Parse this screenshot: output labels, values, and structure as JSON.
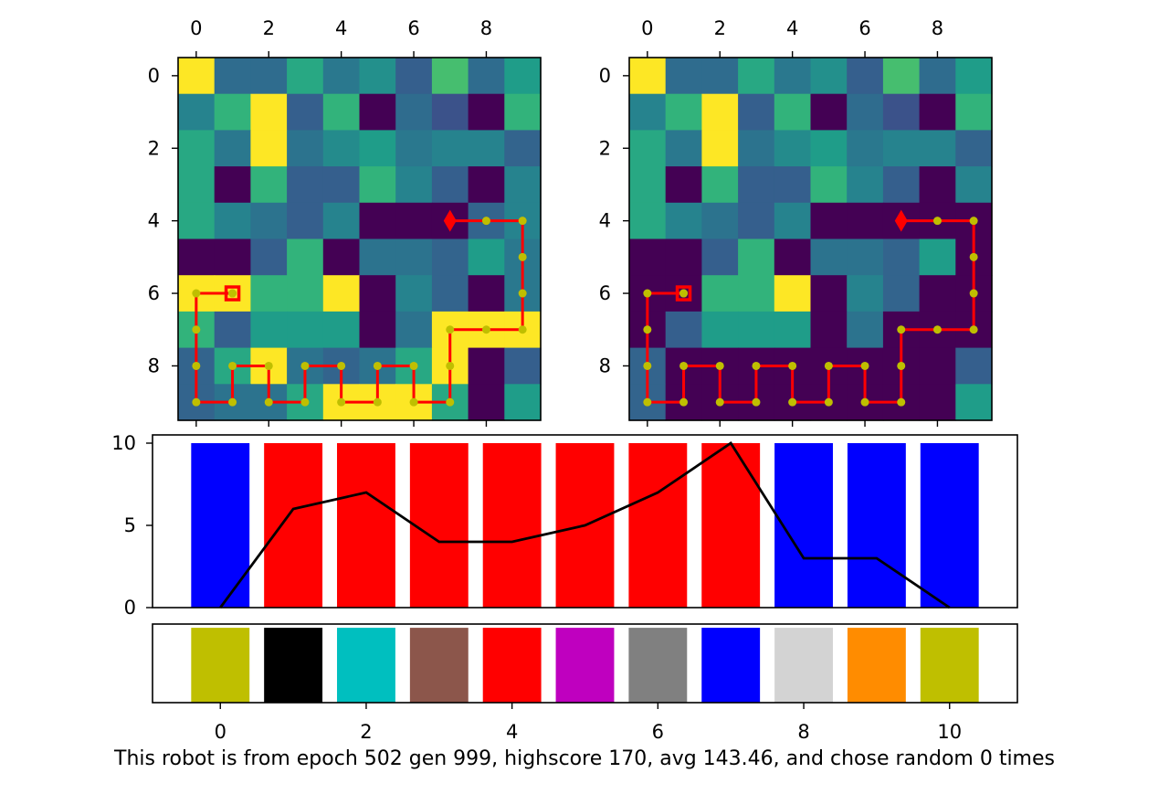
{
  "chart_data": [
    {
      "type": "heatmap",
      "panel": "grid-left",
      "colormap": "viridis",
      "xticks": [
        0,
        2,
        4,
        6,
        8
      ],
      "yticks": [
        0,
        2,
        4,
        6,
        8
      ],
      "grid_values": [
        [
          1.0,
          0.35,
          0.35,
          0.6,
          0.4,
          0.5,
          0.3,
          0.7,
          0.35,
          0.55
        ],
        [
          0.45,
          0.65,
          1.0,
          0.3,
          0.65,
          0.0,
          0.35,
          0.25,
          0.0,
          0.65
        ],
        [
          0.6,
          0.4,
          1.0,
          0.38,
          0.48,
          0.55,
          0.4,
          0.45,
          0.45,
          0.32
        ],
        [
          0.6,
          0.0,
          0.65,
          0.3,
          0.3,
          0.65,
          0.45,
          0.3,
          0.0,
          0.45
        ],
        [
          0.6,
          0.45,
          0.38,
          0.3,
          0.45,
          0.0,
          0.0,
          0.0,
          0.32,
          0.45
        ],
        [
          0.0,
          0.0,
          0.3,
          0.65,
          0.0,
          0.38,
          0.38,
          0.32,
          0.55,
          0.4
        ],
        [
          1.0,
          1.0,
          0.65,
          0.65,
          1.0,
          0.0,
          0.45,
          0.32,
          0.0,
          0.4
        ],
        [
          0.65,
          0.3,
          0.55,
          0.55,
          0.55,
          0.0,
          0.38,
          1.0,
          1.0,
          1.0
        ],
        [
          0.32,
          0.6,
          1.0,
          0.38,
          0.32,
          0.38,
          0.6,
          1.0,
          0.0,
          0.3
        ],
        [
          0.32,
          0.38,
          0.38,
          0.6,
          1.0,
          1.0,
          1.0,
          0.6,
          0.0,
          0.55
        ]
      ],
      "path": [
        [
          7,
          4
        ],
        [
          8,
          4
        ],
        [
          9,
          4
        ],
        [
          9,
          5
        ],
        [
          9,
          6
        ],
        [
          9,
          7
        ],
        [
          8,
          7
        ],
        [
          7,
          7
        ],
        [
          7,
          8
        ],
        [
          7,
          9
        ],
        [
          6,
          9
        ],
        [
          6,
          8
        ],
        [
          5,
          8
        ],
        [
          5,
          9
        ],
        [
          4,
          9
        ],
        [
          4,
          8
        ],
        [
          3,
          8
        ],
        [
          3,
          9
        ],
        [
          2,
          9
        ],
        [
          2,
          8
        ],
        [
          1,
          8
        ],
        [
          1,
          9
        ],
        [
          0,
          9
        ],
        [
          0,
          8
        ],
        [
          0,
          7
        ],
        [
          0,
          6
        ],
        [
          1,
          6
        ]
      ],
      "start_marker": {
        "x": 7,
        "y": 4,
        "shape": "diamond"
      },
      "end_marker": {
        "x": 1,
        "y": 6,
        "shape": "square"
      }
    },
    {
      "type": "heatmap",
      "panel": "grid-right",
      "colormap": "viridis",
      "xticks": [
        0,
        2,
        4,
        6,
        8
      ],
      "yticks": [
        0,
        2,
        4,
        6,
        8
      ],
      "grid_values": [
        [
          1.0,
          0.35,
          0.35,
          0.6,
          0.4,
          0.5,
          0.3,
          0.7,
          0.35,
          0.55
        ],
        [
          0.45,
          0.65,
          1.0,
          0.3,
          0.65,
          0.0,
          0.35,
          0.25,
          0.0,
          0.65
        ],
        [
          0.6,
          0.4,
          1.0,
          0.38,
          0.48,
          0.55,
          0.4,
          0.45,
          0.45,
          0.32
        ],
        [
          0.6,
          0.0,
          0.65,
          0.3,
          0.3,
          0.65,
          0.45,
          0.3,
          0.0,
          0.45
        ],
        [
          0.6,
          0.45,
          0.38,
          0.3,
          0.45,
          0.0,
          0.0,
          0.0,
          0.0,
          0.0
        ],
        [
          0.0,
          0.0,
          0.3,
          0.65,
          0.0,
          0.38,
          0.38,
          0.32,
          0.55,
          0.0
        ],
        [
          0.0,
          0.0,
          0.65,
          0.65,
          1.0,
          0.0,
          0.45,
          0.32,
          0.0,
          0.0
        ],
        [
          0.0,
          0.3,
          0.55,
          0.55,
          0.55,
          0.0,
          0.38,
          0.0,
          0.0,
          0.0
        ],
        [
          0.32,
          0.0,
          0.0,
          0.0,
          0.0,
          0.0,
          0.0,
          0.0,
          0.0,
          0.3
        ],
        [
          0.32,
          0.0,
          0.0,
          0.0,
          0.0,
          0.0,
          0.0,
          0.0,
          0.0,
          0.55
        ]
      ],
      "path": [
        [
          7,
          4
        ],
        [
          8,
          4
        ],
        [
          9,
          4
        ],
        [
          9,
          5
        ],
        [
          9,
          6
        ],
        [
          9,
          7
        ],
        [
          8,
          7
        ],
        [
          7,
          7
        ],
        [
          7,
          8
        ],
        [
          7,
          9
        ],
        [
          6,
          9
        ],
        [
          6,
          8
        ],
        [
          5,
          8
        ],
        [
          5,
          9
        ],
        [
          4,
          9
        ],
        [
          4,
          8
        ],
        [
          3,
          8
        ],
        [
          3,
          9
        ],
        [
          2,
          9
        ],
        [
          2,
          8
        ],
        [
          1,
          8
        ],
        [
          1,
          9
        ],
        [
          0,
          9
        ],
        [
          0,
          8
        ],
        [
          0,
          7
        ],
        [
          0,
          6
        ],
        [
          1,
          6
        ]
      ],
      "start_marker": {
        "x": 7,
        "y": 4,
        "shape": "diamond"
      },
      "end_marker": {
        "x": 1,
        "y": 6,
        "shape": "square"
      }
    },
    {
      "type": "bar",
      "panel": "bars-middle",
      "x": [
        0,
        1,
        2,
        3,
        4,
        5,
        6,
        7,
        8,
        9,
        10
      ],
      "values": [
        10,
        10,
        10,
        10,
        10,
        10,
        10,
        10,
        10,
        10,
        10
      ],
      "colors": [
        "#0000ff",
        "#ff0000",
        "#ff0000",
        "#ff0000",
        "#ff0000",
        "#ff0000",
        "#ff0000",
        "#ff0000",
        "#0000ff",
        "#0000ff",
        "#0000ff"
      ],
      "line": {
        "x": [
          0,
          1,
          2,
          3,
          4,
          5,
          6,
          7,
          8,
          9,
          10
        ],
        "y": [
          0,
          6,
          7,
          4,
          4,
          5,
          7,
          10,
          3,
          3,
          0
        ],
        "color": "#000000"
      },
      "xlim": [
        -0.93,
        10.93
      ],
      "ylim": [
        0,
        10.5
      ],
      "yticks": [
        0,
        5,
        10
      ]
    },
    {
      "type": "bar",
      "panel": "bars-bottom",
      "x": [
        0,
        1,
        2,
        3,
        4,
        5,
        6,
        7,
        8,
        9,
        10
      ],
      "values": [
        1,
        1,
        1,
        1,
        1,
        1,
        1,
        1,
        1,
        1,
        1
      ],
      "colors": [
        "#bfbf00",
        "#000000",
        "#00bfbf",
        "#8c564b",
        "#ff0000",
        "#bf00bf",
        "#808080",
        "#0000ff",
        "#d3d3d3",
        "#ff8c00",
        "#bfbf00"
      ],
      "xlim": [
        -0.93,
        10.93
      ],
      "ylim": [
        0,
        1.05
      ],
      "xticks": [
        0,
        2,
        4,
        6,
        8,
        10
      ]
    }
  ],
  "caption": "This robot is from epoch 502 gen 999, highscore 170, avg 143.46, and chose random 0 times"
}
